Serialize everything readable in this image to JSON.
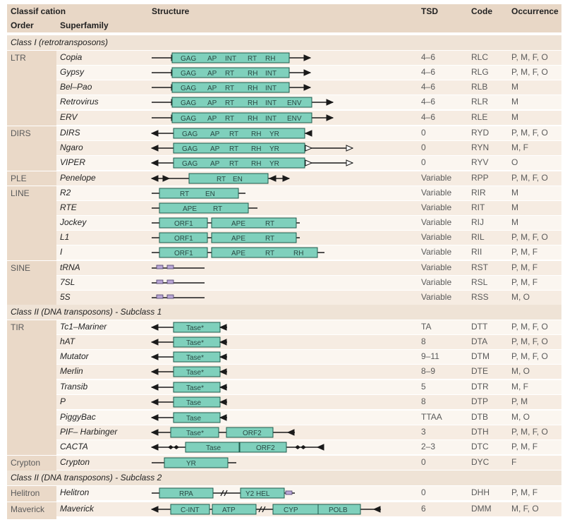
{
  "header": {
    "classification": "Classif cation",
    "order": "Order",
    "superfamily": "Superfamily",
    "structure": "Structure",
    "tsd": "TSD",
    "code": "Code",
    "occurrence": "Occurrence"
  },
  "classes": [
    "Class I (retrotransposons)",
    "Class II (DNA transposons) - Subclass 1",
    "Class II (DNA transposons) - Subclass 2"
  ],
  "orders": [
    "LTR",
    "DIRS",
    "PLE",
    "LINE",
    "SINE",
    "TIR",
    "Crypton",
    "Helitron",
    "Maverick"
  ],
  "rows": [
    {
      "superfamily": "Copia",
      "tsd": "4–6",
      "code": "RLC",
      "occurrence": "P, M, F, O",
      "domains": [
        "GAG",
        "AP",
        "INT",
        "RT",
        "RH"
      ]
    },
    {
      "superfamily": "Gypsy",
      "tsd": "4–6",
      "code": "RLG",
      "occurrence": "P, M, F, O",
      "domains": [
        "GAG",
        "AP",
        "RT",
        "RH",
        "INT"
      ]
    },
    {
      "superfamily": "Bel–Pao",
      "tsd": "4–6",
      "code": "RLB",
      "occurrence": "M",
      "domains": [
        "GAG",
        "AP",
        "RT",
        "RH",
        "INT"
      ]
    },
    {
      "superfamily": "Retrovirus",
      "tsd": "4–6",
      "code": "RLR",
      "occurrence": "M",
      "domains": [
        "GAG",
        "AP",
        "RT",
        "RH",
        "INT",
        "ENV"
      ]
    },
    {
      "superfamily": "ERV",
      "tsd": "4–6",
      "code": "RLE",
      "occurrence": "M",
      "domains": [
        "GAG",
        "AP",
        "RT",
        "RH",
        "INT",
        "ENV"
      ]
    },
    {
      "superfamily": "DIRS",
      "tsd": "0",
      "code": "RYD",
      "occurrence": "P, M, F, O",
      "domains": [
        "GAG",
        "AP",
        "RT",
        "RH",
        "YR"
      ]
    },
    {
      "superfamily": "Ngaro",
      "tsd": "0",
      "code": "RYN",
      "occurrence": "M, F",
      "domains": [
        "GAG",
        "AP",
        "RT",
        "RH",
        "YR"
      ]
    },
    {
      "superfamily": "VIPER",
      "tsd": "0",
      "code": "RYV",
      "occurrence": "O",
      "domains": [
        "GAG",
        "AP",
        "RT",
        "RH",
        "YR"
      ]
    },
    {
      "superfamily": "Penelope",
      "tsd": "Variable",
      "code": "RPP",
      "occurrence": "P, M, F, O",
      "domains": [
        "RT",
        "EN"
      ]
    },
    {
      "superfamily": "R2",
      "tsd": "Variable",
      "code": "RIR",
      "occurrence": "M",
      "domains": [
        "RT",
        "EN"
      ]
    },
    {
      "superfamily": "RTE",
      "tsd": "Variable",
      "code": "RIT",
      "occurrence": "M",
      "domains": [
        "APE",
        "RT"
      ]
    },
    {
      "superfamily": "Jockey",
      "tsd": "Variable",
      "code": "RIJ",
      "occurrence": "M",
      "domains": [
        "ORF1",
        "APE",
        "RT"
      ]
    },
    {
      "superfamily": "L1",
      "tsd": "Variable",
      "code": "RIL",
      "occurrence": "P, M, F, O",
      "domains": [
        "ORF1",
        "APE",
        "RT"
      ]
    },
    {
      "superfamily": "I",
      "tsd": "Variable",
      "code": "RII",
      "occurrence": "P, M, F",
      "domains": [
        "ORF1",
        "APE",
        "RT",
        "RH"
      ]
    },
    {
      "superfamily": "tRNA",
      "tsd": "Variable",
      "code": "RST",
      "occurrence": "P, M, F",
      "domains": []
    },
    {
      "superfamily": "7SL",
      "tsd": "Variable",
      "code": "RSL",
      "occurrence": "P, M, F",
      "domains": []
    },
    {
      "superfamily": "5S",
      "tsd": "Variable",
      "code": "RSS",
      "occurrence": "M, O",
      "domains": []
    },
    {
      "superfamily": "Tc1–Mariner",
      "tsd": "TA",
      "code": "DTT",
      "occurrence": "P, M, F, O",
      "domains": [
        "Tase*"
      ]
    },
    {
      "superfamily": "hAT",
      "tsd": "8",
      "code": "DTA",
      "occurrence": "P, M, F, O",
      "domains": [
        "Tase*"
      ]
    },
    {
      "superfamily": "Mutator",
      "tsd": "9–11",
      "code": "DTM",
      "occurrence": "P, M, F, O",
      "domains": [
        "Tase*"
      ]
    },
    {
      "superfamily": "Merlin",
      "tsd": "8–9",
      "code": "DTE",
      "occurrence": "M, O",
      "domains": [
        "Tase*"
      ]
    },
    {
      "superfamily": "Transib",
      "tsd": "5",
      "code": "DTR",
      "occurrence": "M, F",
      "domains": [
        "Tase*"
      ]
    },
    {
      "superfamily": "P",
      "tsd": "8",
      "code": "DTP",
      "occurrence": "P, M",
      "domains": [
        "Tase"
      ]
    },
    {
      "superfamily": "PiggyBac",
      "tsd": "TTAA",
      "code": "DTB",
      "occurrence": "M, O",
      "domains": [
        "Tase"
      ]
    },
    {
      "superfamily": "PIF– Harbinger",
      "tsd": "3",
      "code": "DTH",
      "occurrence": "P, M, F, O",
      "domains": [
        "Tase*",
        "ORF2"
      ]
    },
    {
      "superfamily": "CACTA",
      "tsd": "2–3",
      "code": "DTC",
      "occurrence": "P, M, F",
      "domains": [
        "Tase",
        "ORF2"
      ]
    },
    {
      "superfamily": "Crypton",
      "tsd": "0",
      "code": "DYC",
      "occurrence": "F",
      "domains": [
        "YR"
      ]
    },
    {
      "superfamily": "Helitron",
      "tsd": "0",
      "code": "DHH",
      "occurrence": "P, M, F",
      "domains": [
        "RPA",
        "Y2 HEL"
      ]
    },
    {
      "superfamily": "Maverick",
      "tsd": "6",
      "code": "DMM",
      "occurrence": "M, F, O",
      "domains": [
        "C-INT",
        "ATP",
        "CYP",
        "POLB"
      ]
    }
  ],
  "colors": {
    "header_bg": "#e8d7c6",
    "class_bg": "#efe3d6",
    "order_bg": "#ead9c8",
    "row_bg_a": "#f6ece2",
    "row_bg_b": "#fbf6f0",
    "domain_fill": "#7fd0bc",
    "domain_stroke": "#1f5a4c",
    "sine_box": "#b9a6d6",
    "line": "#1a1a1a"
  }
}
